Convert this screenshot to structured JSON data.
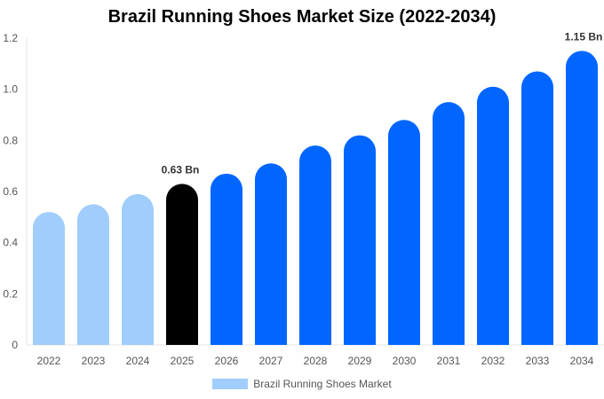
{
  "chart_data": {
    "type": "bar",
    "title": "Brazil Running Shoes Market Size (2022-2034)",
    "categories": [
      "2022",
      "2023",
      "2024",
      "2025",
      "2026",
      "2027",
      "2028",
      "2029",
      "2030",
      "2031",
      "2032",
      "2033",
      "2034"
    ],
    "series": [
      {
        "name": "Brazil Running Shoes Market",
        "values": [
          0.52,
          0.55,
          0.59,
          0.63,
          0.67,
          0.71,
          0.78,
          0.82,
          0.88,
          0.95,
          1.01,
          1.07,
          1.15
        ]
      }
    ],
    "data_labels": {
      "2025": "0.63 Bn",
      "2034": "1.15 Bn"
    },
    "ylim": [
      0,
      1.2
    ],
    "yticks": [
      "0",
      "0.2",
      "0.4",
      "0.6",
      "0.8",
      "1.0",
      "1.2"
    ],
    "grid": false,
    "legend_position": "bottom",
    "colors": {
      "historical": "#a0cdfb",
      "base_year": "#000000",
      "forecast": "#0066ff"
    }
  }
}
